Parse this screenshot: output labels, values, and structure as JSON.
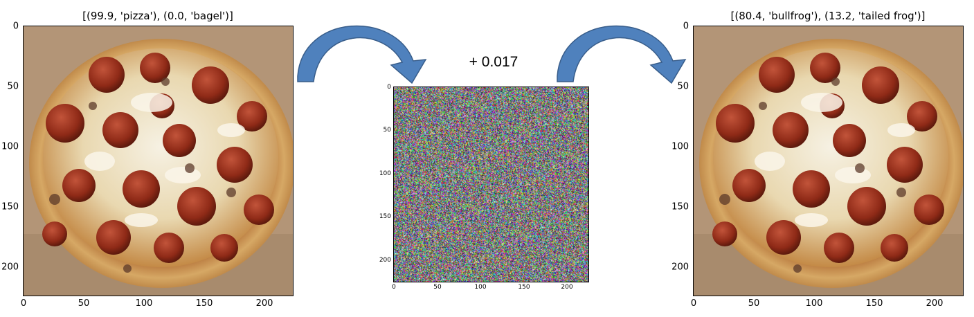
{
  "left_panel": {
    "title": "[(99.9, 'pizza'), (0.0, 'bagel')]",
    "image": "pizza-photo",
    "y_ticks": [
      "0",
      "50",
      "100",
      "150",
      "200"
    ],
    "x_ticks": [
      "0",
      "50",
      "100",
      "150",
      "200"
    ]
  },
  "middle_panel": {
    "label": "+ 0.017",
    "image": "adversarial-noise",
    "y_ticks": [
      "0",
      "50",
      "100",
      "150",
      "200"
    ],
    "x_ticks": [
      "0",
      "50",
      "100",
      "150",
      "200"
    ]
  },
  "right_panel": {
    "title": "[(80.4, 'bullfrog'), (13.2, 'tailed frog')]",
    "image": "pizza-photo-perturbed",
    "y_ticks": [
      "0",
      "50",
      "100",
      "150",
      "200"
    ],
    "x_ticks": [
      "0",
      "50",
      "100",
      "150",
      "200"
    ]
  },
  "arrows": {
    "color": "#4f81bd",
    "icons": [
      "curved-arrow-icon",
      "curved-arrow-icon"
    ]
  },
  "colors": {
    "crust": "#c8914b",
    "cheese": "#f1ead3",
    "pepperoni": "#9a2f1c",
    "board": "#b39577"
  }
}
